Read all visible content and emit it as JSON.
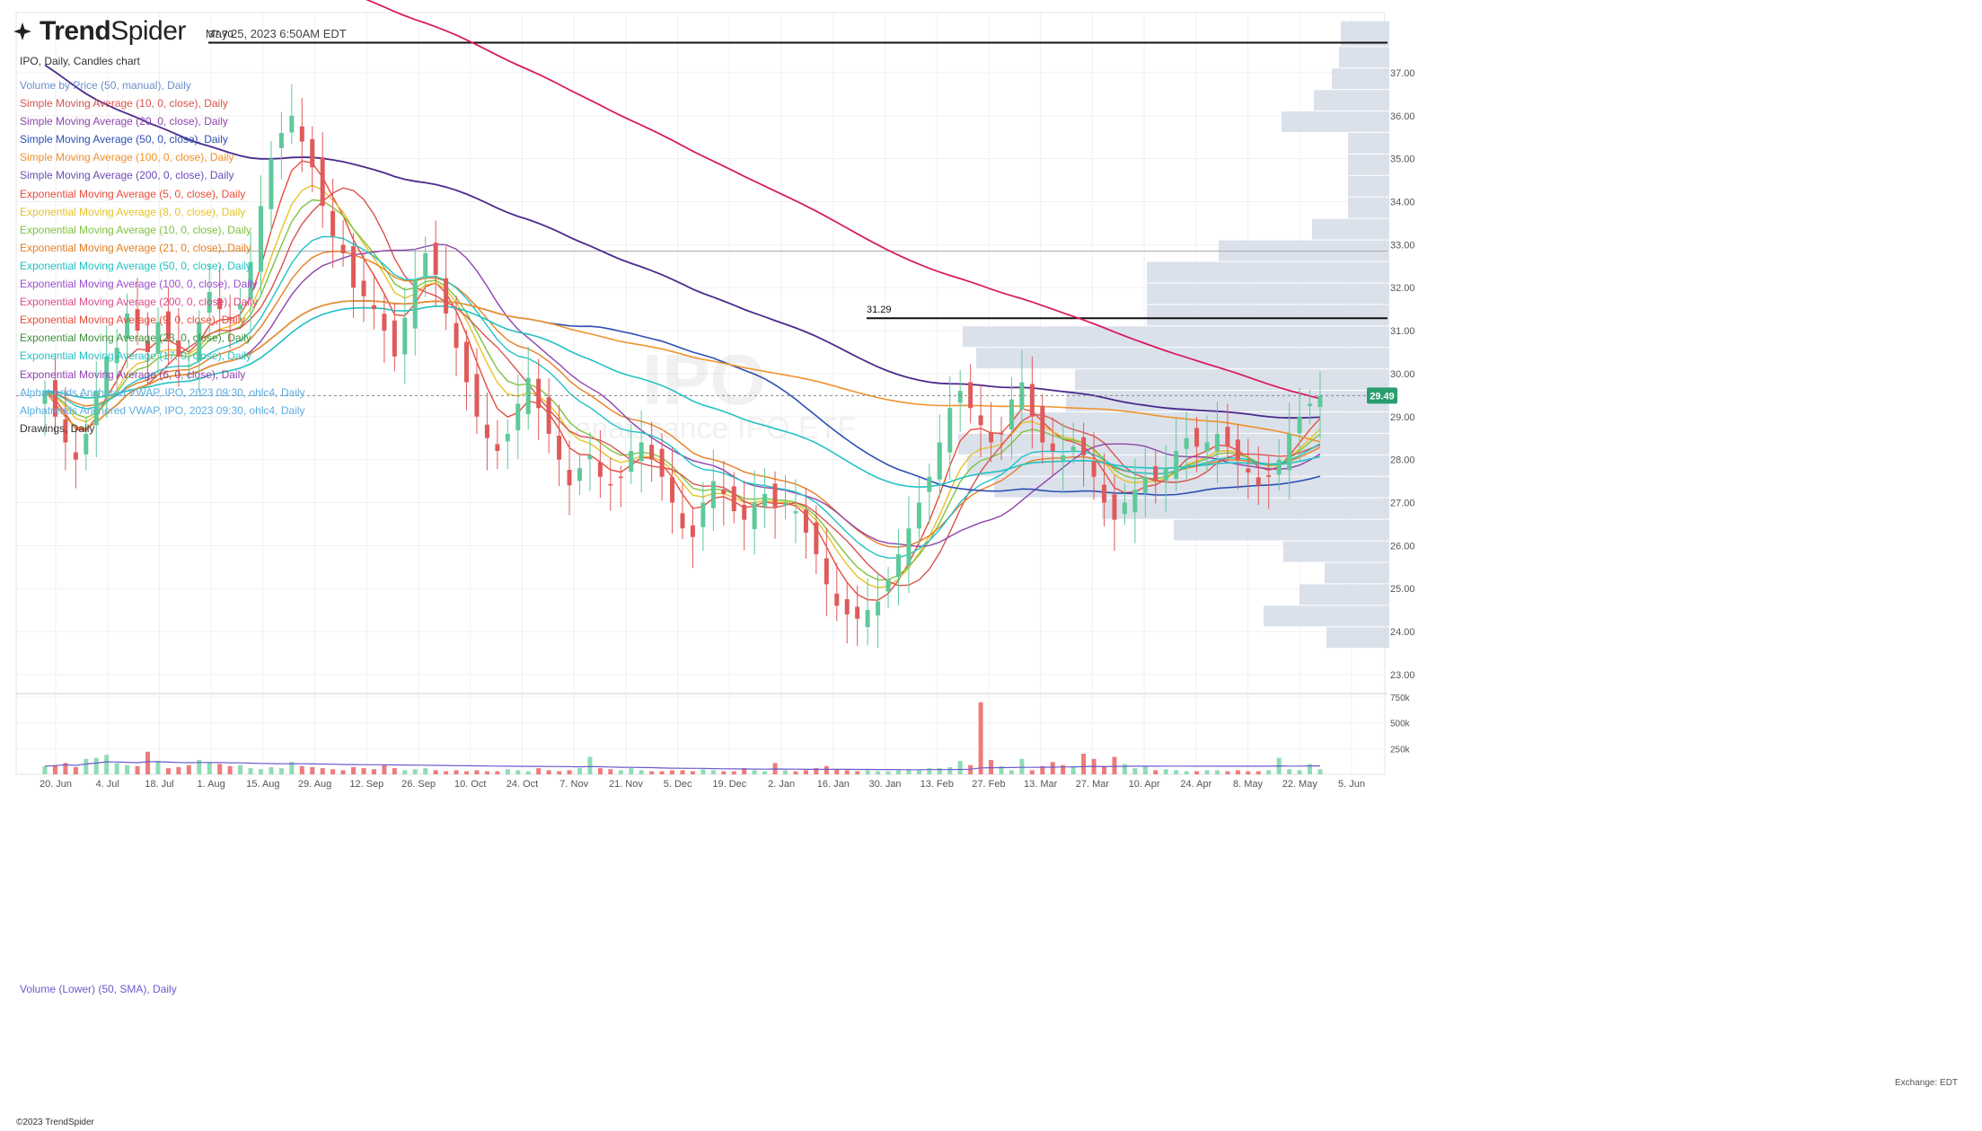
{
  "header": {
    "brand_bold": "Trend",
    "brand_thin": "Spider",
    "timestamp": "May 25, 2023 6:50AM EDT",
    "chart_subtitle": "IPO, Daily, Candles chart"
  },
  "legend": [
    {
      "label": "Volume by Price (50, manual), Daily",
      "color": "#6b8fc9"
    },
    {
      "label": "Simple Moving Average (10, 0, close), Daily",
      "color": "#d9534f"
    },
    {
      "label": "Simple Moving Average (20, 0, close), Daily",
      "color": "#8e44ad"
    },
    {
      "label": "Simple Moving Average (50, 0, close), Daily",
      "color": "#2b4fb3"
    },
    {
      "label": "Simple Moving Average (100, 0, close), Daily",
      "color": "#f0932b"
    },
    {
      "label": "Simple Moving Average (200, 0, close), Daily",
      "color": "#6c4bb5"
    },
    {
      "label": "Exponential Moving Average (5, 0, close), Daily",
      "color": "#e74c3c"
    },
    {
      "label": "Exponential Moving Average (8, 0, close), Daily",
      "color": "#e6c229"
    },
    {
      "label": "Exponential Moving Average (10, 0, close), Daily",
      "color": "#7fc241"
    },
    {
      "label": "Exponential Moving Average (21, 0, close), Daily",
      "color": "#e67e22"
    },
    {
      "label": "Exponential Moving Average (50, 0, close), Daily",
      "color": "#22c1c3"
    },
    {
      "label": "Exponential Moving Average (100, 0, close), Daily",
      "color": "#9b4fd1"
    },
    {
      "label": "Exponential Moving Average (200, 0, close), Daily",
      "color": "#d94c8c"
    },
    {
      "label": "Exponential Moving Average (9, 0, close), Daily",
      "color": "#e74c3c"
    },
    {
      "label": "Exponential Moving Average (23, 0, close), Daily",
      "color": "#3b8f3b"
    },
    {
      "label": "Exponential Moving Average (17, 0, close), Daily",
      "color": "#22c1c3"
    },
    {
      "label": "Exponential Moving Average (6, 0, close), Daily",
      "color": "#8e44ad"
    },
    {
      "label": "Alphatrends Anchored VWAP, IPO, 2023 09:30, ohlc4, Daily",
      "color": "#5dade2"
    },
    {
      "label": "Alphatrends Anchored VWAP, IPO, 2023 09:30, ohlc4, Daily",
      "color": "#5dade2"
    },
    {
      "label": "Drawings, Daily",
      "color": "#333333"
    }
  ],
  "watermark": {
    "symbol": "IPO",
    "name": "Renaissance IPO ETF"
  },
  "volume_panel_label": "Volume (Lower) (50, SMA), Daily",
  "exchange_label": "Exchange: EDT",
  "copyright": "©2023 TrendSpider",
  "colors": {
    "up": "#5ec99a",
    "down": "#e05a5a",
    "vol_up": "#8fdcb5",
    "vol_down": "#ee7b7b",
    "profile": "#d5dce8",
    "last_price_bg": "#2a9d6e"
  },
  "chart_data": {
    "type": "candlestick",
    "symbol": "IPO",
    "interval": "Daily",
    "x_tick_labels": [
      "20. Jun",
      "4. Jul",
      "18. Jul",
      "1. Aug",
      "15. Aug",
      "29. Aug",
      "12. Sep",
      "26. Sep",
      "10. Oct",
      "24. Oct",
      "7. Nov",
      "21. Nov",
      "5. Dec",
      "19. Dec",
      "2. Jan",
      "16. Jan",
      "30. Jan",
      "13. Feb",
      "27. Feb",
      "13. Mar",
      "27. Mar",
      "10. Apr",
      "24. Apr",
      "8. May",
      "22. May",
      "5. Jun"
    ],
    "y_ticks": [
      23.0,
      24.0,
      25.0,
      26.0,
      27.0,
      28.0,
      29.0,
      30.0,
      31.0,
      32.0,
      33.0,
      34.0,
      35.0,
      36.0,
      37.0
    ],
    "ylim": [
      22.6,
      38.4
    ],
    "last_price": 29.49,
    "horizontal_levels": [
      {
        "value": 37.7,
        "label": "37.70",
        "start_tick": "1. Aug"
      },
      {
        "value": 31.29,
        "label": "31.29",
        "start_tick": "30. Jan"
      },
      {
        "value": 32.85,
        "label": "",
        "start_tick": "1. Aug"
      }
    ],
    "closes": [
      29.6,
      29.0,
      28.4,
      28.0,
      28.6,
      29.6,
      30.4,
      30.6,
      31.4,
      31.0,
      30.5,
      31.2,
      30.8,
      30.4,
      30.2,
      31.2,
      31.9,
      31.5,
      31.3,
      31.6,
      32.6,
      33.9,
      35.0,
      35.6,
      36.0,
      35.4,
      34.8,
      33.9,
      33.2,
      32.8,
      32.0,
      31.8,
      31.5,
      31.0,
      30.4,
      31.3,
      32.2,
      32.8,
      32.3,
      31.4,
      30.6,
      29.8,
      29.0,
      28.5,
      28.2,
      28.6,
      29.3,
      29.9,
      29.2,
      28.6,
      28.0,
      27.4,
      27.8,
      28.1,
      27.6,
      27.4,
      27.6,
      28.2,
      28.4,
      28.0,
      27.6,
      27.0,
      26.4,
      26.2,
      27.0,
      27.5,
      27.2,
      26.8,
      26.6,
      27.0,
      27.2,
      26.9,
      27.0,
      26.8,
      26.3,
      25.8,
      25.1,
      24.6,
      24.4,
      24.3,
      24.5,
      24.7,
      25.2,
      25.8,
      26.4,
      27.0,
      27.6,
      28.4,
      29.2,
      29.6,
      29.2,
      28.8,
      28.4,
      28.6,
      29.4,
      29.8,
      29.0,
      28.4,
      28.2,
      28.1,
      28.3,
      28.1,
      27.6,
      27.0,
      26.6,
      27.0,
      27.3,
      27.6,
      27.5,
      27.8,
      28.2,
      28.5,
      28.3,
      28.4,
      28.6,
      28.3,
      28.0,
      27.7,
      27.4,
      27.6,
      28.0,
      28.6,
      29.0,
      29.3,
      29.49
    ],
    "volume_ticks": [
      "250k",
      "500k",
      "750k"
    ],
    "volume_ylim": [
      0,
      750
    ],
    "volumes_k": [
      80,
      90,
      110,
      70,
      150,
      160,
      190,
      110,
      90,
      80,
      220,
      130,
      60,
      70,
      90,
      140,
      120,
      100,
      80,
      90,
      60,
      50,
      70,
      60,
      120,
      80,
      70,
      60,
      50,
      40,
      70,
      60,
      50,
      90,
      60,
      40,
      50,
      60,
      40,
      30,
      40,
      30,
      40,
      30,
      30,
      50,
      40,
      30,
      60,
      40,
      30,
      40,
      60,
      170,
      60,
      50,
      40,
      60,
      40,
      30,
      30,
      40,
      40,
      30,
      50,
      40,
      30,
      30,
      60,
      40,
      30,
      110,
      40,
      30,
      40,
      60,
      80,
      50,
      40,
      30,
      40,
      30,
      30,
      40,
      50,
      40,
      60,
      60,
      70,
      130,
      90,
      700,
      140,
      80,
      40,
      150,
      40,
      80,
      120,
      90,
      80,
      200,
      150,
      80,
      170,
      100,
      60,
      80,
      40,
      50,
      40,
      30,
      30,
      40,
      40,
      30,
      40,
      30,
      30,
      40,
      160,
      50,
      40,
      100,
      50
    ]
  }
}
